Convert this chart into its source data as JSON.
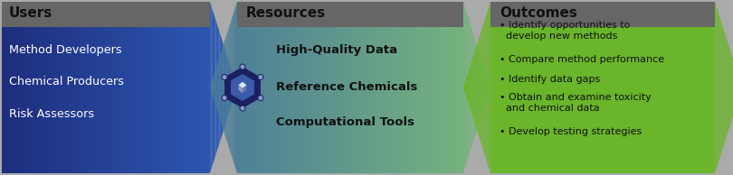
{
  "panel1_title": "Users",
  "panel1_items": [
    "Method Developers",
    "Chemical Producers",
    "Risk Assessors"
  ],
  "panel1_color_left": "#1e2d7d",
  "panel1_color_right": "#2e5cb8",
  "panel2_title": "Resources",
  "panel2_items": [
    "High-Quality Data",
    "Reference Chemicals",
    "Computational Tools"
  ],
  "panel2_color_left": "#4a7a9b",
  "panel2_color_right": "#7ab87a",
  "panel3_title": "Outcomes",
  "panel3_items": [
    "• Identify opportunities to\n  develop new methods",
    "• Compare method performance",
    "• Identify data gaps",
    "• Obtain and examine toxicity\n  and chemical data",
    "• Develop testing strategies"
  ],
  "panel3_color": "#6ab52a",
  "header_color": "#666666",
  "header_text_color": "#111111",
  "panel1_text_color": "#ffffff",
  "panel2_text_color": "#111111",
  "panel3_text_color": "#111111",
  "fig_width": 8.1,
  "fig_height": 1.94,
  "dpi": 100,
  "bg_color": "#aaaaaa"
}
